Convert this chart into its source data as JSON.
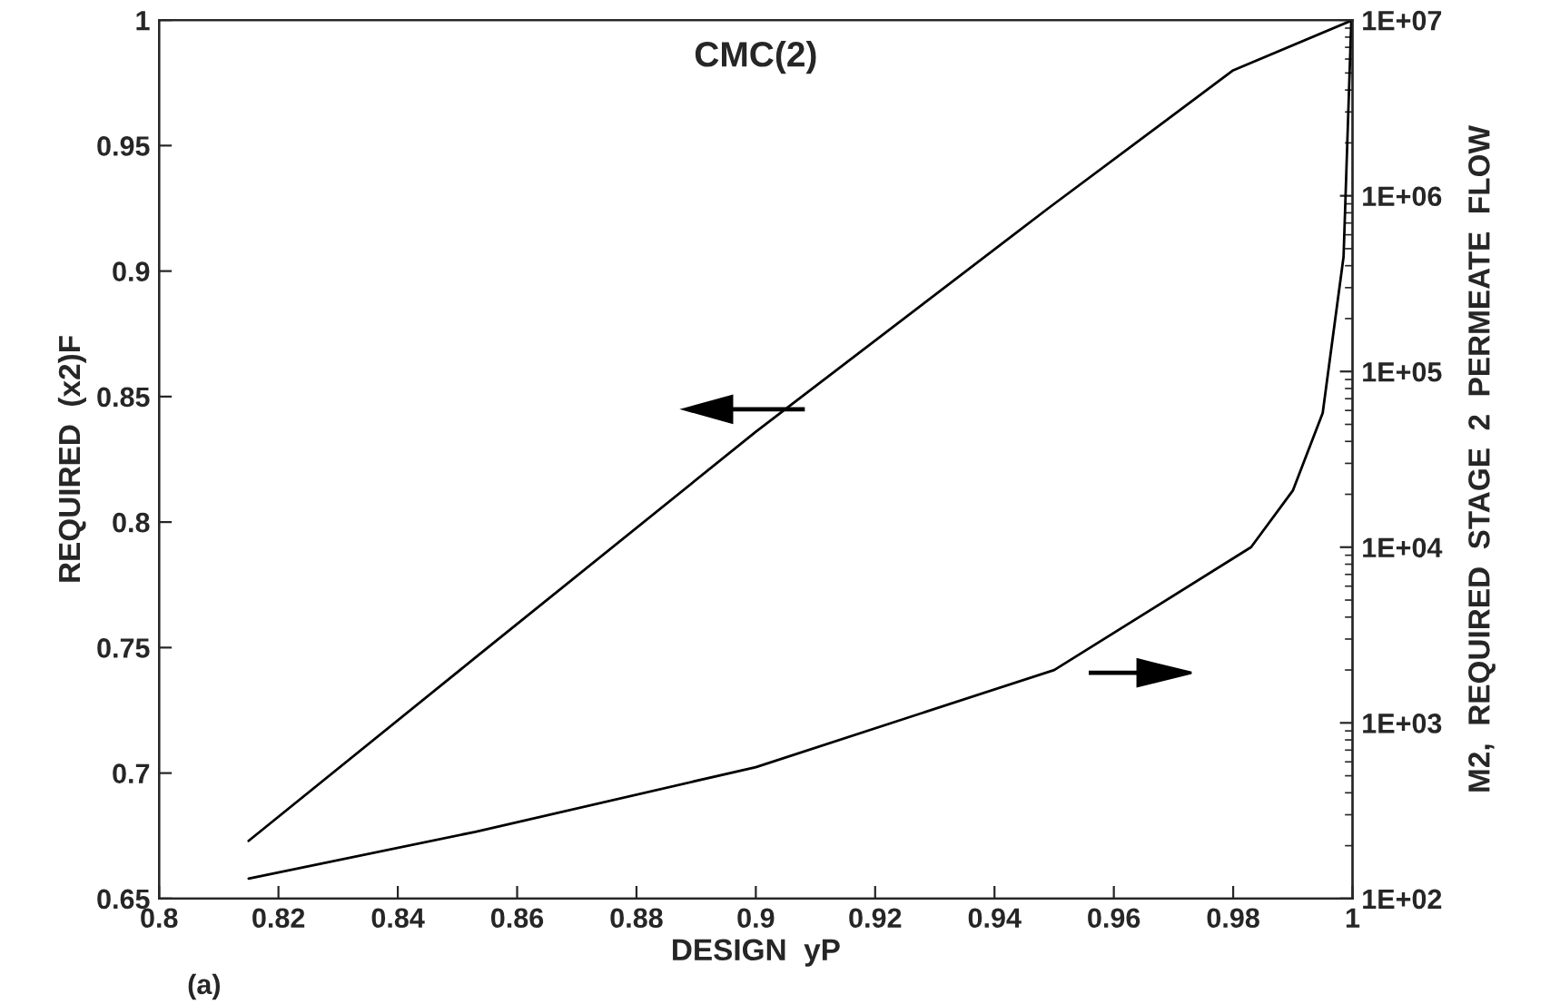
{
  "chart_data": {
    "type": "line",
    "title": "CMC(2)",
    "xlabel": "DESIGN  yP",
    "ylabel": "REQUIRED  (x2)F",
    "y2label": "M2,  REQUIRED  STAGE  2  PERMEATE  FLOW",
    "annotations": [
      "(a)"
    ],
    "series": [
      {
        "color": "#000000",
        "x": [
          0.815,
          0.853,
          0.9,
          0.949,
          0.98,
          1
        ],
        "values": [
          0.673,
          0.746,
          0.836,
          0.925,
          0.98,
          1
        ]
      },
      {
        "color": "#000000",
        "axis": "y2",
        "x": [
          0.815,
          0.853,
          0.9,
          0.95,
          0.983,
          0.99,
          0.995,
          0.9985,
          0.9998
        ],
        "values": [
          130,
          240,
          560,
          2000,
          10000,
          21000,
          58000,
          450000,
          10000000
        ]
      }
    ],
    "xlim": [
      0.8,
      1
    ],
    "xticks": [
      0.8,
      0.82,
      0.84,
      0.86,
      0.88,
      0.9,
      0.92,
      0.94,
      0.96,
      0.98,
      1
    ],
    "ylim": [
      0.65,
      1
    ],
    "yticks": [
      0.65,
      0.7,
      0.75,
      0.8,
      0.85,
      0.9,
      0.95,
      1
    ],
    "y2lim": [
      100,
      10000000
    ],
    "y2ticks": [
      {
        "value": 100,
        "label": "1E+02"
      },
      {
        "value": 1000,
        "label": "1E+03"
      },
      {
        "value": 10000,
        "label": "1E+04"
      },
      {
        "value": 100000,
        "label": "1E+05"
      },
      {
        "value": 1000000,
        "label": "1E+06"
      },
      {
        "value": 10000000,
        "label": "1E+07"
      }
    ],
    "log": "y2",
    "grid": false,
    "legend": false,
    "marker": "none",
    "line_style": "solid"
  }
}
